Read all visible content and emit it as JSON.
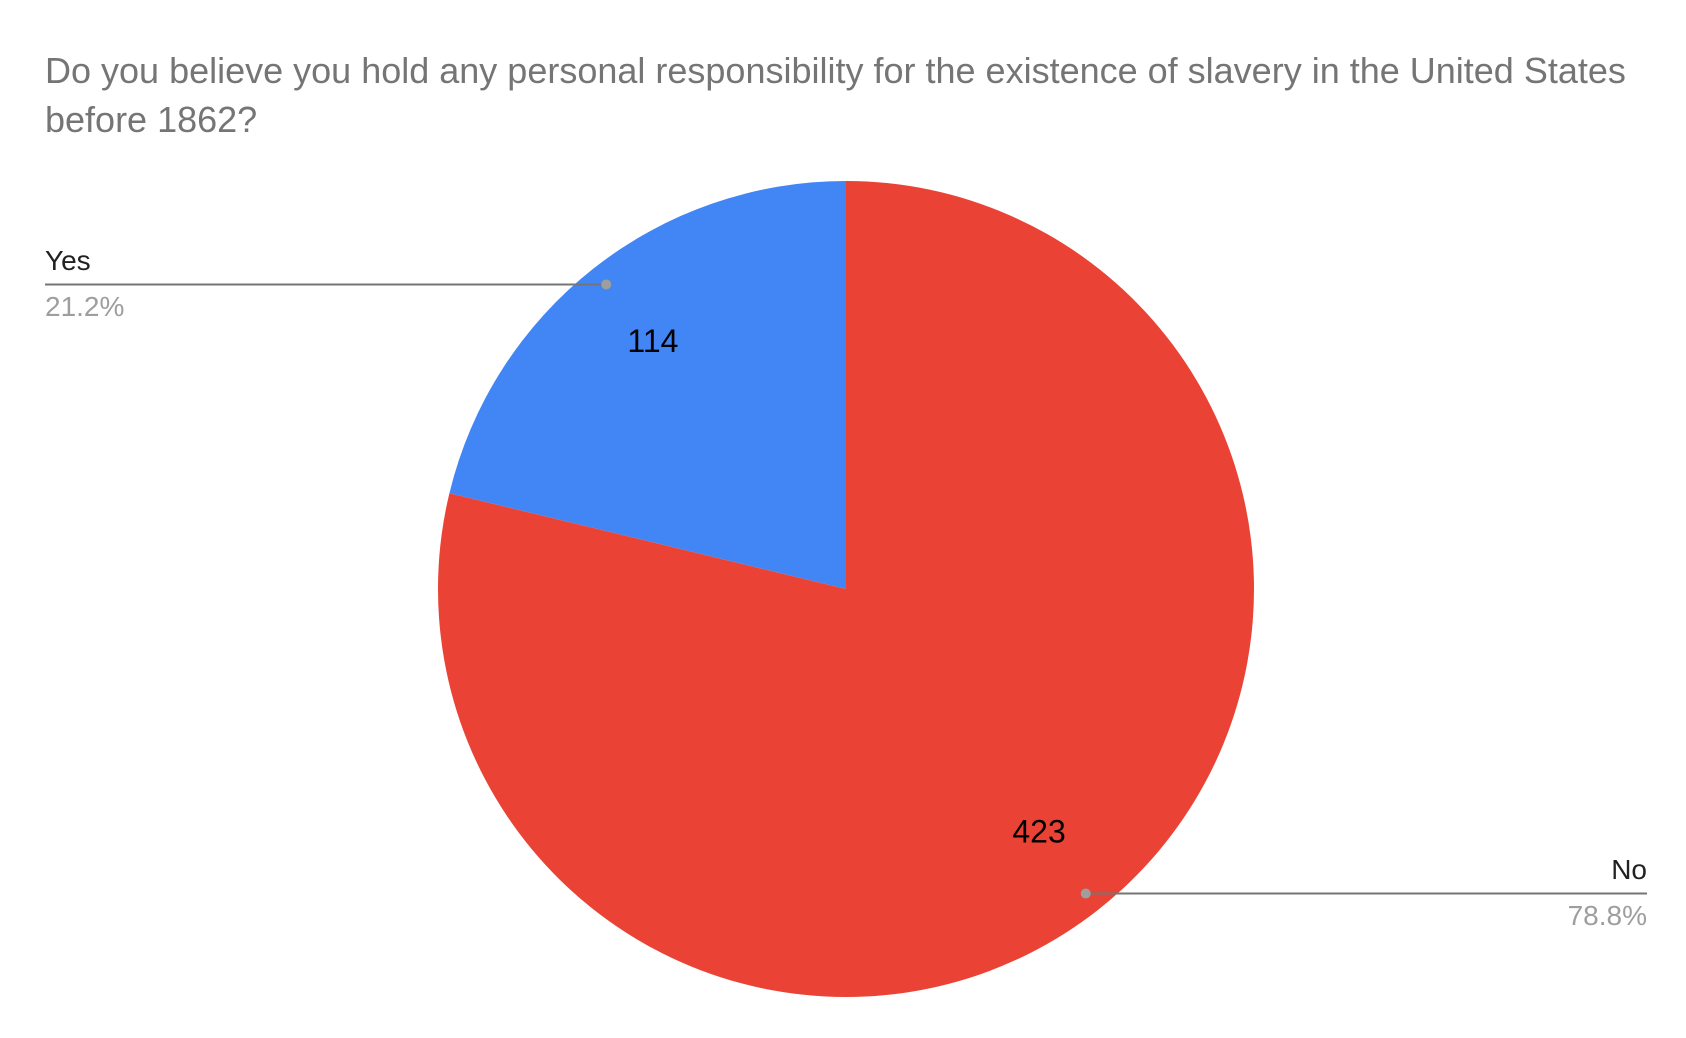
{
  "chart_data": {
    "type": "pie",
    "title": "Do you believe you hold any personal responsibility for the existence of slavery in the United States before 1862?",
    "categories": [
      "Yes",
      "No"
    ],
    "values": [
      114,
      423
    ],
    "percent_labels": [
      "21.2%",
      "78.8%"
    ],
    "colors": [
      "#4285f4",
      "#ea4335"
    ]
  }
}
